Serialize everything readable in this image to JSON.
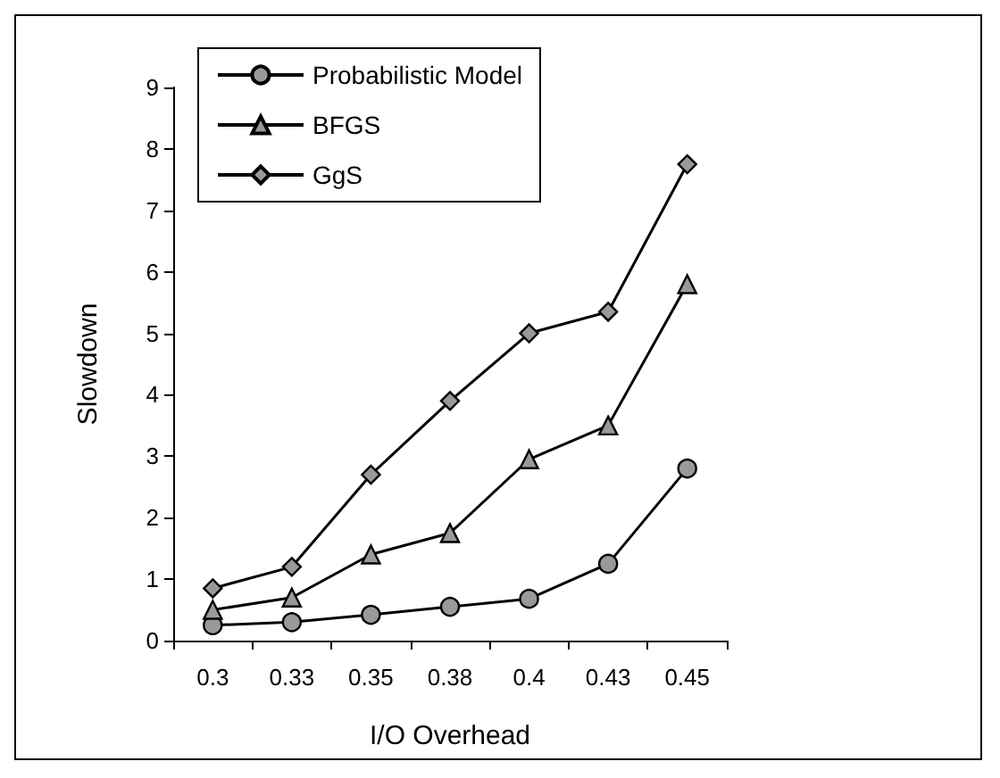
{
  "chart_data": {
    "type": "line",
    "xlabel": "I/O Overhead",
    "ylabel": "Slowdown",
    "categories": [
      "0.3",
      "0.33",
      "0.35",
      "0.38",
      "0.4",
      "0.43",
      "0.45"
    ],
    "series": [
      {
        "name": "Probabilistic Model",
        "color": "#000000",
        "marker": "circle",
        "values": [
          0.25,
          0.3,
          0.42,
          0.55,
          0.68,
          1.25,
          2.8
        ]
      },
      {
        "name": "BFGS",
        "color": "#000000",
        "marker": "triangle",
        "values": [
          0.5,
          0.7,
          1.4,
          1.75,
          2.95,
          3.5,
          5.8
        ]
      },
      {
        "name": "GgS",
        "color": "#000000",
        "marker": "diamond",
        "values": [
          0.85,
          1.2,
          2.7,
          3.9,
          5.0,
          5.35,
          7.75
        ]
      }
    ],
    "ylim": [
      0,
      9
    ],
    "yticks": [
      0,
      1,
      2,
      3,
      4,
      5,
      6,
      7,
      8,
      9
    ],
    "grid": false,
    "legend": "top left",
    "line_style": "solid"
  }
}
